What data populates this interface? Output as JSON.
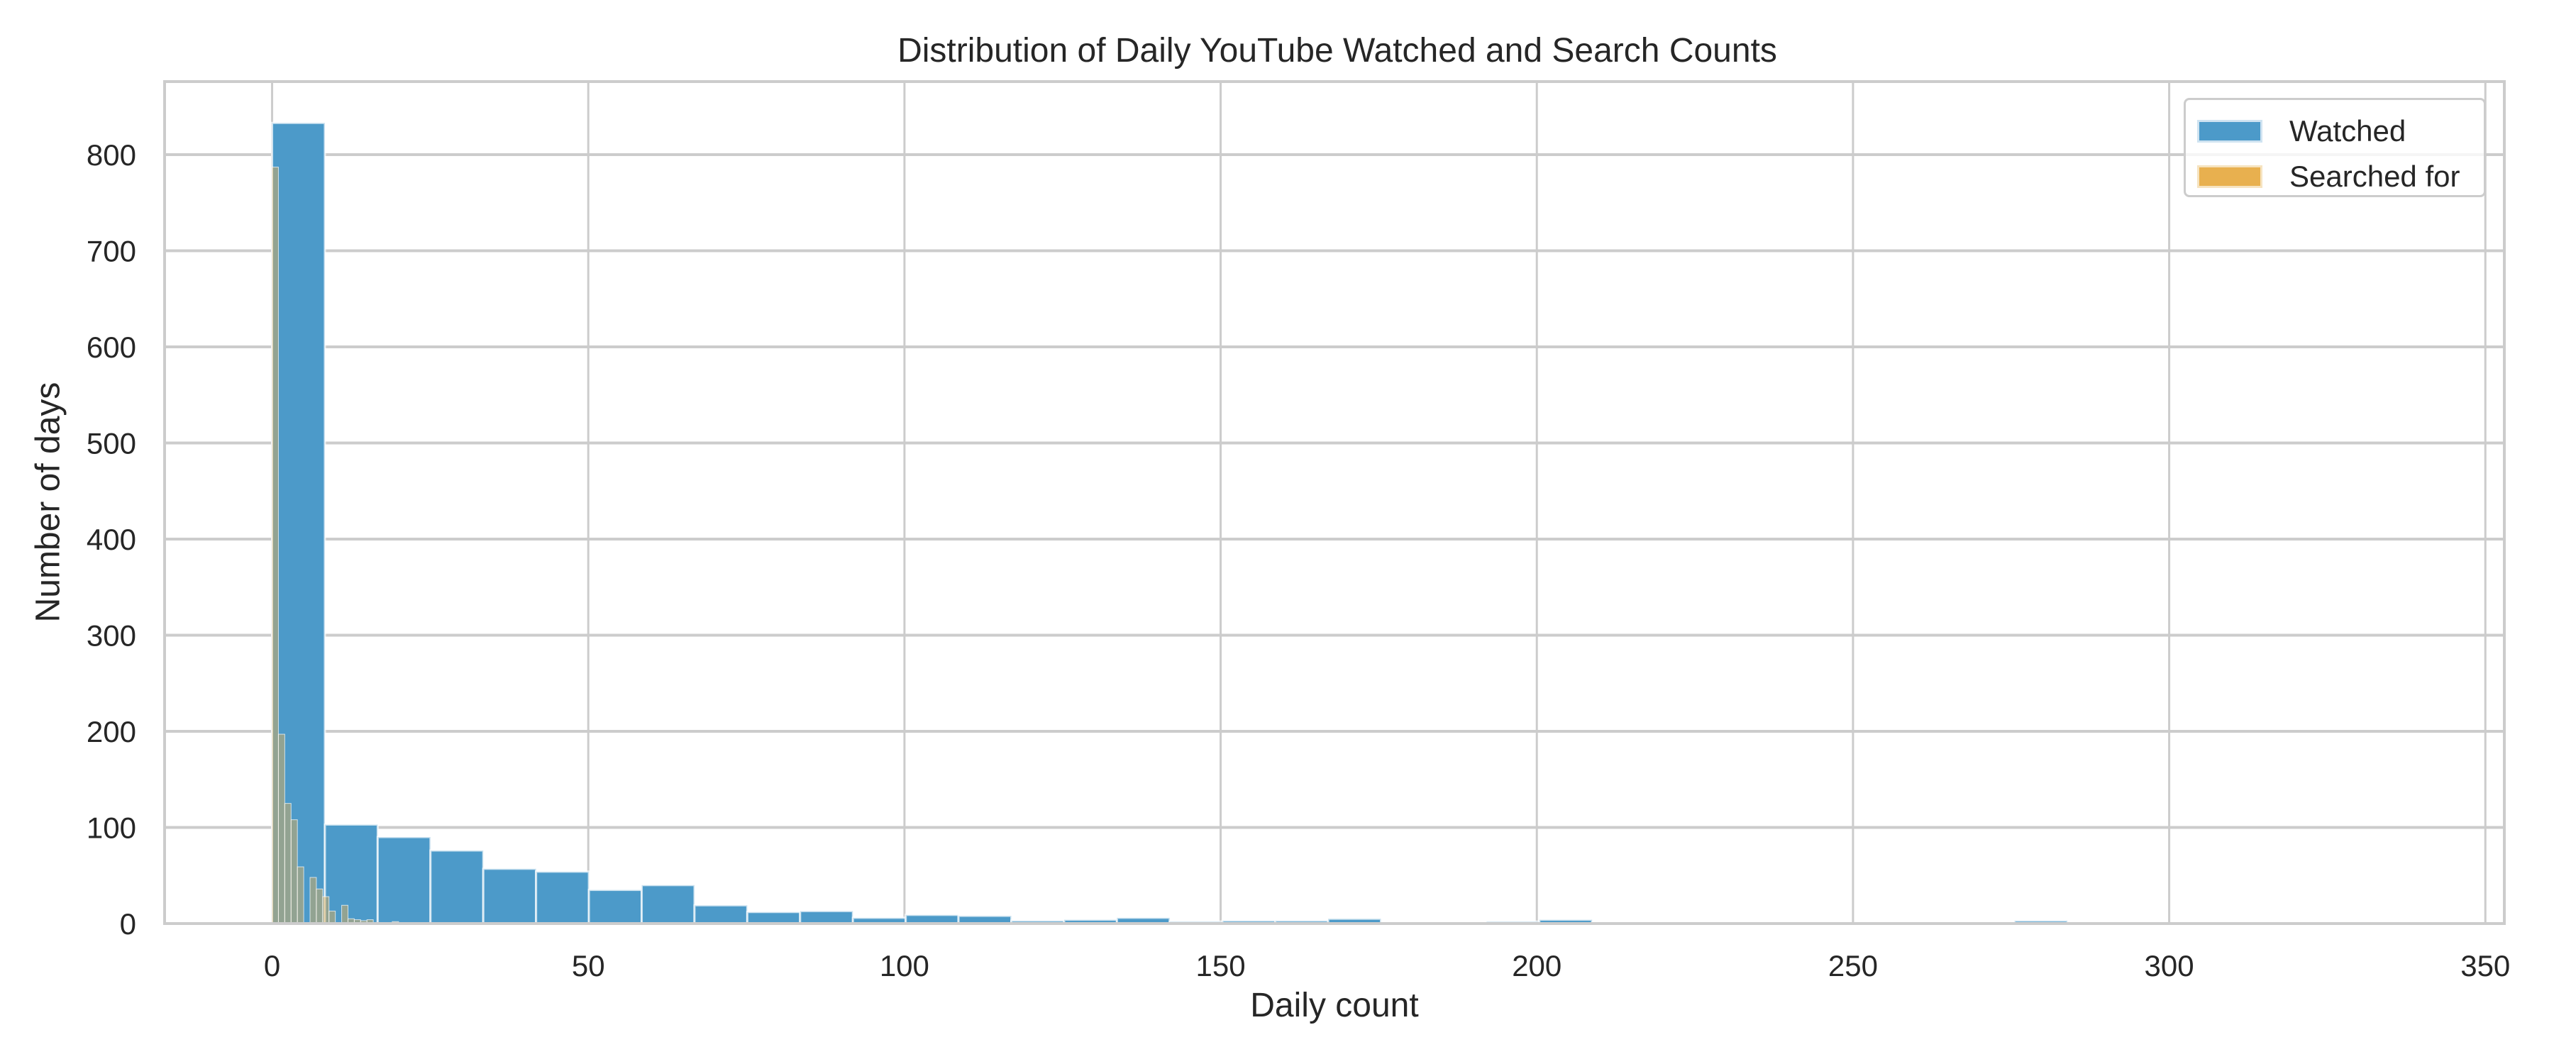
{
  "chart": {
    "title": "Distribution of Daily YouTube Watched and Search Counts",
    "xlabel": "Daily count",
    "ylabel": "Number of days",
    "legend": [
      {
        "label": "Watched",
        "color": "#4c9ac9"
      },
      {
        "label": "Searched for",
        "color": "#e8b04f"
      }
    ]
  },
  "chart_data": {
    "type": "bar",
    "subtype": "overlaid histogram",
    "title": "Distribution of Daily YouTube Watched and Search Counts",
    "xlabel": "Daily count",
    "ylabel": "Number of days",
    "xlim": [
      -17,
      353
    ],
    "ylim": [
      0,
      876
    ],
    "xticks": [
      0,
      50,
      100,
      150,
      200,
      250,
      300,
      350
    ],
    "yticks": [
      0,
      100,
      200,
      300,
      400,
      500,
      600,
      700,
      800
    ],
    "grid": true,
    "legend_position": "upper right",
    "series": [
      {
        "name": "Watched",
        "color": "#4c9ac9",
        "bin_start": 0,
        "bin_width": 8.35,
        "values": [
          833,
          103,
          90,
          76,
          57,
          54,
          35,
          40,
          19,
          12,
          13,
          6,
          9,
          8,
          3,
          4,
          6,
          2,
          3,
          3,
          5,
          0,
          0,
          2,
          4,
          1,
          0,
          0,
          0,
          0,
          0,
          0,
          1,
          3,
          0,
          0,
          0,
          0,
          0,
          0,
          0,
          0
        ]
      },
      {
        "name": "Searched for",
        "color": "#e8b04f",
        "bin_start": 0,
        "bin_width": 1.0,
        "values": [
          787,
          197,
          125,
          108,
          59,
          0,
          48,
          36,
          28,
          13,
          0,
          19,
          5,
          4,
          3,
          4,
          0,
          0,
          1,
          2,
          1
        ]
      }
    ]
  }
}
